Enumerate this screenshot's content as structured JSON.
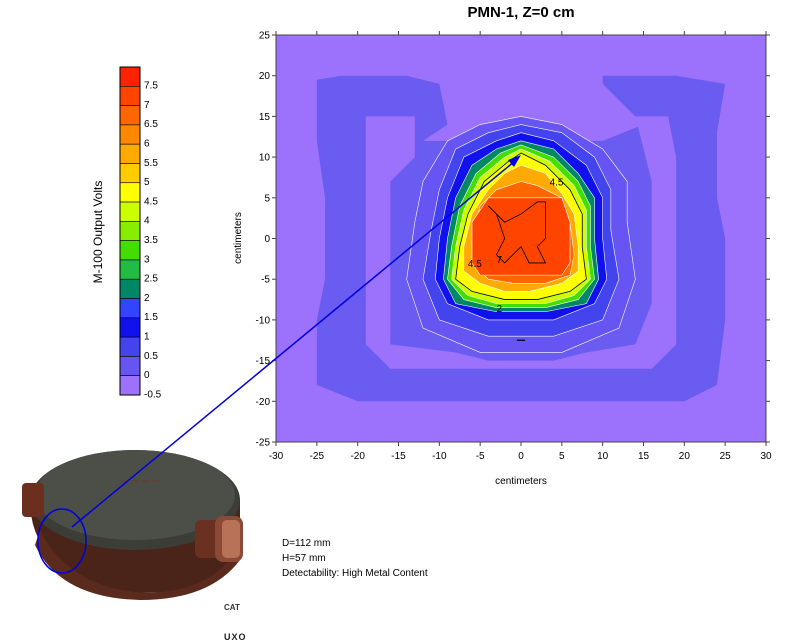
{
  "chart_data": {
    "type": "heatmap",
    "title": "PMN-1, Z=0 cm",
    "xlabel": "centimeters",
    "ylabel": "centimeters",
    "xlim": [
      -30,
      30
    ],
    "ylim": [
      -25,
      25
    ],
    "x_ticks": [
      "-30",
      "-25",
      "-20",
      "-15",
      "-10",
      "-5",
      "0",
      "5",
      "10",
      "15",
      "20",
      "25",
      "30"
    ],
    "y_ticks": [
      "25",
      "20",
      "15",
      "10",
      "5",
      "0",
      "-5",
      "-10",
      "-15",
      "-20",
      "-25"
    ],
    "colorbar": {
      "label": "M-100 Output Volts",
      "levels": [
        "7.5",
        "7",
        "6.5",
        "6",
        "5.5",
        "5",
        "4.5",
        "4",
        "3.5",
        "3",
        "2.5",
        "2",
        "1.5",
        "1",
        "0.5",
        "0",
        "-0.5"
      ],
      "colors": [
        "#ff2200",
        "#ff4400",
        "#ff6600",
        "#ff8800",
        "#ffaa00",
        "#ffcc00",
        "#ffff00",
        "#ccff00",
        "#88ee00",
        "#44dd00",
        "#22bb44",
        "#008866",
        "#3344ff",
        "#1111ee",
        "#4444ee",
        "#6655f2",
        "#9c72fc"
      ]
    },
    "contour_labels": [
      "4.5",
      "4.5",
      "7",
      "2"
    ],
    "peak_value": 7.5,
    "peak_location": [
      0,
      0
    ]
  },
  "info": {
    "diameter": "D=112 mm",
    "height": "H=57 mm",
    "detectability": "Detectability: High Metal Content"
  },
  "logo": {
    "top": "CAT",
    "bottom": "UXO"
  },
  "colors": {
    "arrow": "#0000dd",
    "background_field": "#9c72fc",
    "ring_low": "#6a5cf0"
  }
}
